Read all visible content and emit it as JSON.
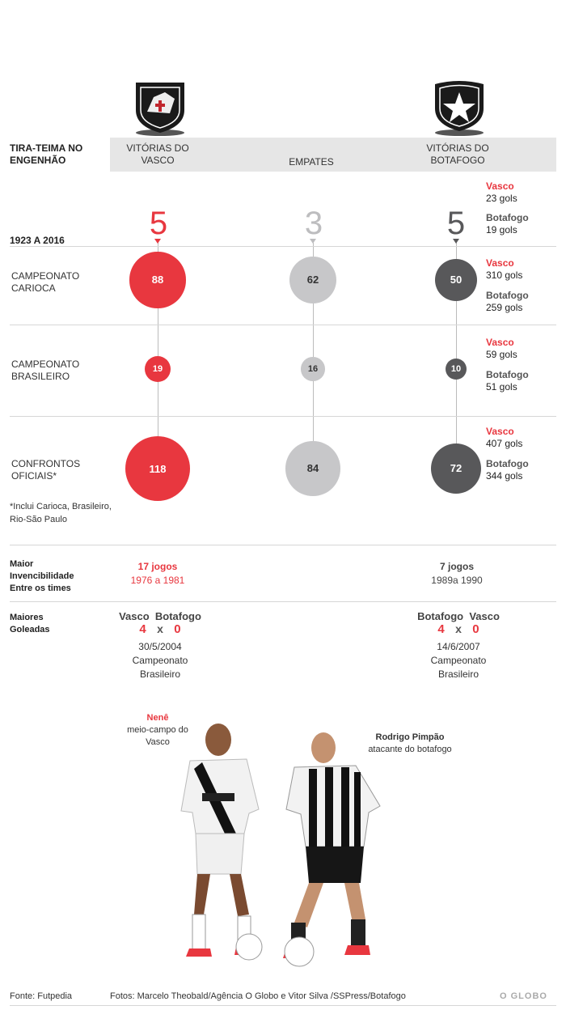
{
  "header": {
    "title": "TIRA-TEIMA NO ENGENHÃO",
    "col_vasco": "VITÓRIAS DO VASCO",
    "col_empates": "EMPATES",
    "col_botafogo": "VITÓRIAS DO BOTAFOGO"
  },
  "period": {
    "label": "1923 A 2016",
    "vasco_wins": "5",
    "draws": "3",
    "botafogo_wins": "5",
    "goals": {
      "vasco_team": "Vasco",
      "vasco_goals": "23 gols",
      "botafogo_team": "Botafogo",
      "botafogo_goals": "19 gols"
    }
  },
  "rows": [
    {
      "label": "CAMPEONATO CARIOCA",
      "vasco": "88",
      "empates": "62",
      "botafogo": "50",
      "goals": {
        "vasco_team": "Vasco",
        "vasco_goals": "310 gols",
        "botafogo_team": "Botafogo",
        "botafogo_goals": "259 gols"
      }
    },
    {
      "label": "CAMPEONATO BRASILEIRO",
      "vasco": "19",
      "empates": "16",
      "botafogo": "10",
      "goals": {
        "vasco_team": "Vasco",
        "vasco_goals": "59 gols",
        "botafogo_team": "Botafogo",
        "botafogo_goals": "51 gols"
      }
    },
    {
      "label": "CONFRONTOS OFICIAIS*",
      "vasco": "118",
      "empates": "84",
      "botafogo": "72",
      "goals": {
        "vasco_team": "Vasco",
        "vasco_goals": "407 gols",
        "botafogo_team": "Botafogo",
        "botafogo_goals": "344 gols"
      }
    }
  ],
  "footnote": "*Inclui Carioca, Brasileiro, Rio-São Paulo",
  "invencibilidade": {
    "label": "Maior Invencibilidade Entre os times",
    "vasco_games": "17 jogos",
    "vasco_period": "1976 a 1981",
    "botafogo_games": "7 jogos",
    "botafogo_period": "1989a 1990"
  },
  "goleadas": {
    "label": "Maiores Goleadas",
    "left": {
      "team1": "Vasco",
      "team2": "Botafogo",
      "score1": "4",
      "x": "x",
      "score2": "0",
      "date": "30/5/2004",
      "comp1": "Campeonato",
      "comp2": "Brasileiro"
    },
    "right": {
      "team1": "Botafogo",
      "team2": "Vasco",
      "score1": "4",
      "x": "x",
      "score2": "0",
      "date": "14/6/2007",
      "comp1": "Campeonato",
      "comp2": "Brasileiro"
    }
  },
  "players": {
    "left_name": "Nenê",
    "left_role": "meio-campo do Vasco",
    "right_name": "Rodrigo Pimpão",
    "right_role": "atacante do botafogo"
  },
  "footer": {
    "source": "Fonte: Futpedia",
    "photos": "Fotos: Marcelo Theobald/Agência O Globo e Vitor Silva /SSPress/Botafogo",
    "brand": "O GLOBO"
  },
  "colors": {
    "vasco": "#e8373f",
    "draw": "#c7c7c9",
    "botafogo": "#58585a"
  },
  "chart_data": {
    "type": "bubble-table",
    "categories": [
      "Vitórias do Vasco",
      "Empates",
      "Vitórias do Botafogo"
    ],
    "series": [
      {
        "name": "1923 A 2016",
        "values": [
          5,
          3,
          5
        ]
      },
      {
        "name": "Campeonato Carioca",
        "values": [
          88,
          62,
          50
        ]
      },
      {
        "name": "Campeonato Brasileiro",
        "values": [
          19,
          16,
          10
        ]
      },
      {
        "name": "Confrontos Oficiais*",
        "values": [
          118,
          84,
          72
        ]
      }
    ],
    "goals": {
      "1923 A 2016": {
        "Vasco": 23,
        "Botafogo": 19
      },
      "Campeonato Carioca": {
        "Vasco": 310,
        "Botafogo": 259
      },
      "Campeonato Brasileiro": {
        "Vasco": 59,
        "Botafogo": 51
      },
      "Confrontos Oficiais*": {
        "Vasco": 407,
        "Botafogo": 344
      }
    }
  }
}
